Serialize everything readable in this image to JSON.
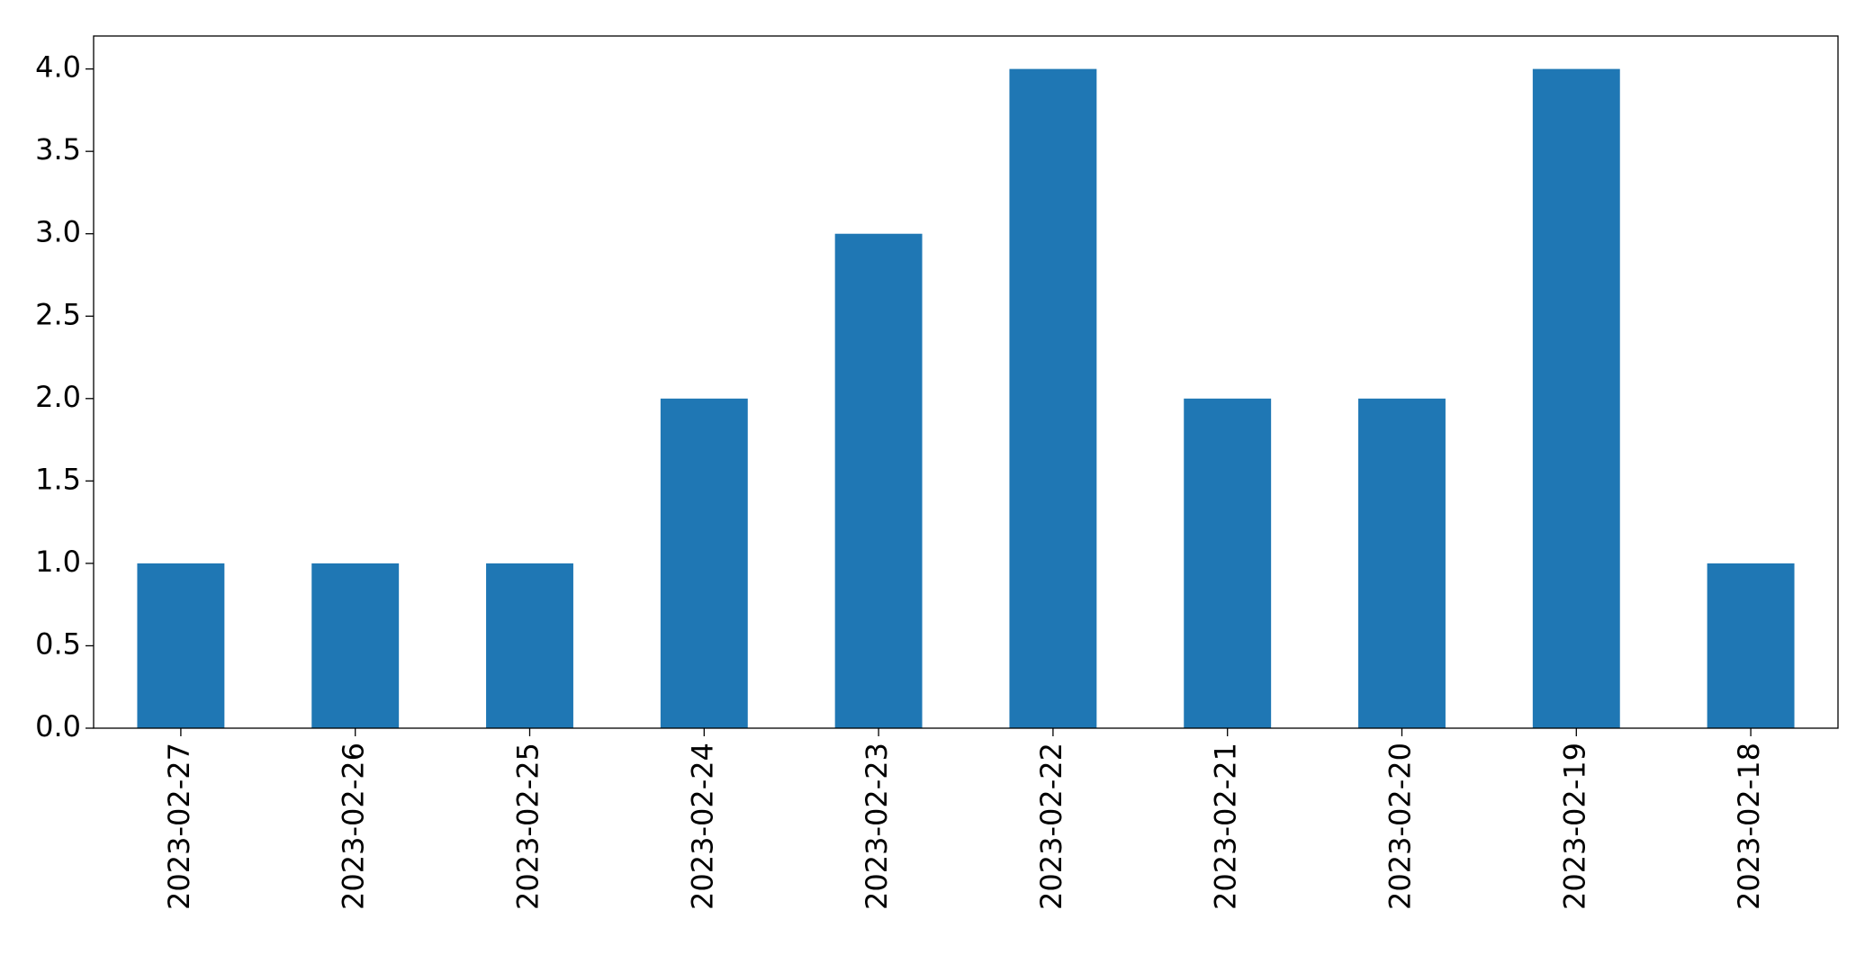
{
  "chart_data": {
    "type": "bar",
    "categories": [
      "2023-02-27",
      "2023-02-26",
      "2023-02-25",
      "2023-02-24",
      "2023-02-23",
      "2023-02-22",
      "2023-02-21",
      "2023-02-20",
      "2023-02-19",
      "2023-02-18"
    ],
    "values": [
      1,
      1,
      1,
      2,
      3,
      4,
      2,
      2,
      4,
      1
    ],
    "color": "#1f77b4",
    "ylim": [
      0,
      4.2
    ],
    "yticks": [
      {
        "value": 0,
        "label": "0.0"
      },
      {
        "value": 0.5,
        "label": "0.5"
      },
      {
        "value": 1,
        "label": "1.0"
      },
      {
        "value": 1.5,
        "label": "1.5"
      },
      {
        "value": 2,
        "label": "2.0"
      },
      {
        "value": 2.5,
        "label": "2.5"
      },
      {
        "value": 3,
        "label": "3.0"
      },
      {
        "value": 3.5,
        "label": "3.5"
      },
      {
        "value": 4,
        "label": "4.0"
      }
    ],
    "grid": false
  }
}
